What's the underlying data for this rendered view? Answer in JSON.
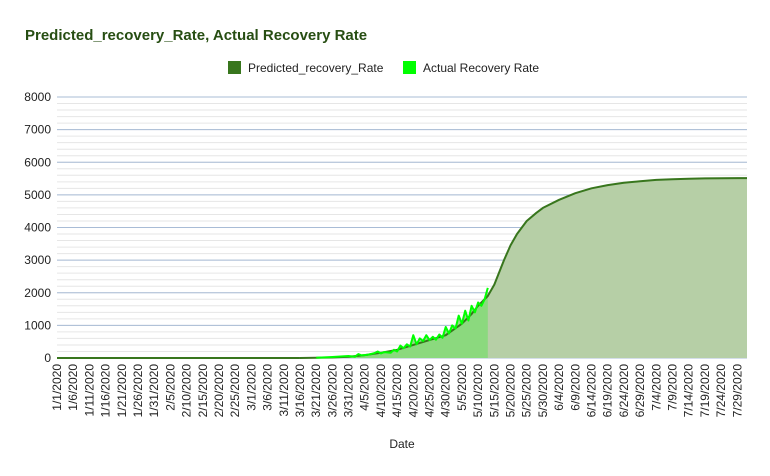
{
  "chart_data": {
    "type": "area",
    "title": "Predicted_recovery_Rate, Actual Recovery Rate",
    "xlabel": "Date",
    "ylabel": "",
    "ylim": [
      0,
      8000
    ],
    "yticks": [
      0,
      1000,
      2000,
      3000,
      4000,
      5000,
      6000,
      7000,
      8000
    ],
    "x_start": "1/1/2020",
    "x_end": "8/1/2020",
    "x_tick_labels": [
      "1/1/2020",
      "1/6/2020",
      "1/11/2020",
      "1/16/2020",
      "1/21/2020",
      "1/26/2020",
      "1/31/2020",
      "2/5/2020",
      "2/10/2020",
      "2/15/2020",
      "2/20/2020",
      "2/25/2020",
      "3/1/2020",
      "3/6/2020",
      "3/11/2020",
      "3/16/2020",
      "3/21/2020",
      "3/26/2020",
      "3/31/2020",
      "4/5/2020",
      "4/10/2020",
      "4/15/2020",
      "4/20/2020",
      "4/25/2020",
      "4/30/2020",
      "5/5/2020",
      "5/10/2020",
      "5/15/2020",
      "5/20/2020",
      "5/25/2020",
      "5/30/2020",
      "6/4/2020",
      "6/9/2020",
      "6/14/2020",
      "6/19/2020",
      "6/24/2020",
      "6/29/2020",
      "7/4/2020",
      "7/9/2020",
      "7/14/2020",
      "7/19/2020",
      "7/24/2020",
      "7/29/2020"
    ],
    "legend_position": "top",
    "grid": true,
    "series": [
      {
        "name": "Predicted_recovery_Rate",
        "color": "#38761d",
        "fill": "#b6cfa6",
        "x": [
          "3/16/2020",
          "3/21/2020",
          "3/26/2020",
          "3/31/2020",
          "4/5/2020",
          "4/10/2020",
          "4/15/2020",
          "4/20/2020",
          "4/25/2020",
          "4/30/2020",
          "5/5/2020",
          "5/8/2020",
          "5/10/2020",
          "5/13/2020",
          "5/15/2020",
          "5/18/2020",
          "5/20/2020",
          "5/22/2020",
          "5/25/2020",
          "5/28/2020",
          "5/30/2020",
          "6/4/2020",
          "6/9/2020",
          "6/14/2020",
          "6/19/2020",
          "6/24/2020",
          "6/29/2020",
          "7/4/2020",
          "7/9/2020",
          "7/14/2020",
          "7/19/2020",
          "7/24/2020",
          "7/29/2020",
          "8/1/2020"
        ],
        "values": [
          0,
          5,
          15,
          40,
          90,
          160,
          250,
          400,
          550,
          700,
          1050,
          1350,
          1600,
          1900,
          2250,
          3000,
          3450,
          3800,
          4200,
          4450,
          4600,
          4850,
          5050,
          5200,
          5300,
          5370,
          5420,
          5460,
          5480,
          5495,
          5505,
          5510,
          5515,
          5515
        ]
      },
      {
        "name": "Actual Recovery Rate",
        "color": "#00ff00",
        "fill": "#86d97a",
        "x": [
          "3/21/2020",
          "3/26/2020",
          "3/31/2020",
          "4/2/2020",
          "4/3/2020",
          "4/4/2020",
          "4/6/2020",
          "4/8/2020",
          "4/9/2020",
          "4/10/2020",
          "4/11/2020",
          "4/13/2020",
          "4/14/2020",
          "4/15/2020",
          "4/16/2020",
          "4/17/2020",
          "4/18/2020",
          "4/19/2020",
          "4/20/2020",
          "4/21/2020",
          "4/22/2020",
          "4/23/2020",
          "4/24/2020",
          "4/25/2020",
          "4/26/2020",
          "4/27/2020",
          "4/28/2020",
          "4/29/2020",
          "4/30/2020",
          "5/1/2020",
          "5/2/2020",
          "5/3/2020",
          "5/4/2020",
          "5/5/2020",
          "5/6/2020",
          "5/7/2020",
          "5/8/2020",
          "5/9/2020",
          "5/10/2020",
          "5/11/2020",
          "5/12/2020",
          "5/13/2020"
        ],
        "values": [
          10,
          30,
          60,
          40,
          120,
          80,
          100,
          150,
          200,
          140,
          180,
          160,
          250,
          200,
          380,
          300,
          420,
          350,
          700,
          420,
          600,
          520,
          700,
          550,
          650,
          560,
          720,
          620,
          950,
          750,
          1000,
          900,
          1300,
          1050,
          1450,
          1150,
          1600,
          1400,
          1700,
          1600,
          1800,
          2150
        ]
      }
    ]
  }
}
